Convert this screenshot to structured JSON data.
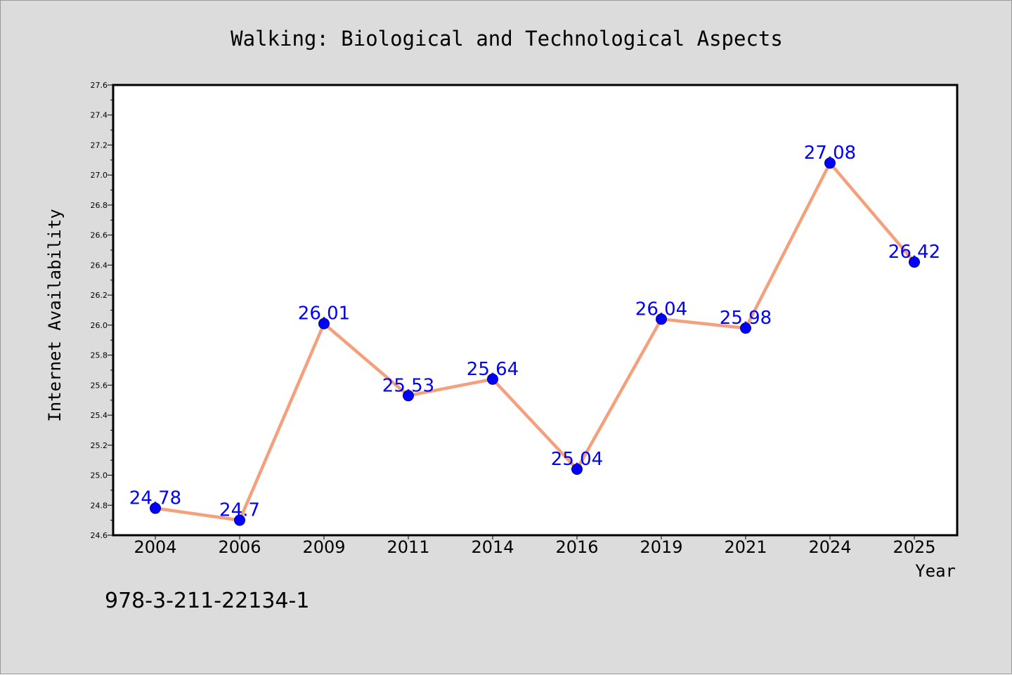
{
  "colors": {
    "background": "#dcdcdc",
    "plot_background": "#ffffff",
    "line": "#f4a07c",
    "marker": "#0000ff",
    "data_label": "#0000ff",
    "axes": "#000000"
  },
  "footer": {
    "isbn": "978-3-211-22134-1"
  },
  "chart_data": {
    "type": "line",
    "title": "Walking: Biological and Technological Aspects",
    "xlabel": "Year",
    "ylabel": "Internet Availability",
    "categories": [
      "2004",
      "2006",
      "2009",
      "2011",
      "2014",
      "2016",
      "2019",
      "2021",
      "2024",
      "2025"
    ],
    "series": [
      {
        "values": [
          24.78,
          24.7,
          26.01,
          25.53,
          25.64,
          25.04,
          26.04,
          25.98,
          27.08,
          26.42
        ]
      }
    ],
    "data_labels": [
      "24.78",
      "24.7",
      "26.01",
      "25.53",
      "25.64",
      "25.04",
      "26.04",
      "25.98",
      "27.08",
      "26.42"
    ],
    "ylim": [
      24.6,
      27.6
    ],
    "yticks": [
      "24.6",
      "24.8",
      "25.0",
      "25.2",
      "25.4",
      "25.6",
      "25.8",
      "26.0",
      "26.2",
      "26.4",
      "26.6",
      "26.8",
      "27.0",
      "27.2",
      "27.4",
      "27.6"
    ],
    "grid": false,
    "legend": "none",
    "marker": "circle"
  }
}
